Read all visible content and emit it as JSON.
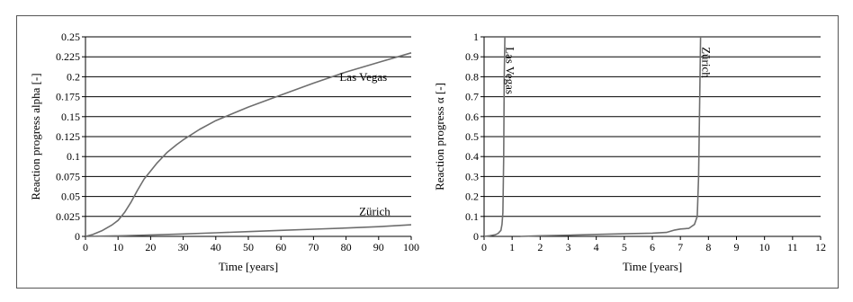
{
  "chart_data": [
    {
      "type": "line",
      "title": "",
      "xlabel": "Time [years]",
      "ylabel": "Reaction progress alpha [-]",
      "xlim": [
        0,
        100
      ],
      "ylim": [
        0,
        0.25
      ],
      "xticks": [
        "0",
        "10",
        "20",
        "30",
        "40",
        "50",
        "60",
        "70",
        "80",
        "90",
        "100"
      ],
      "yticks": [
        "0",
        "0.025",
        "0.05",
        "0.075",
        "0.1",
        "0.125",
        "0.15",
        "0.175",
        "0.2",
        "0.225",
        "0.25"
      ],
      "grid": "horizontal",
      "line_color": "#6e6e6e",
      "series": [
        {
          "name": "Las Vegas",
          "x": [
            0,
            2,
            5,
            8,
            10,
            12,
            14,
            16,
            18,
            20,
            22,
            25,
            28,
            30,
            35,
            40,
            50,
            60,
            70,
            80,
            90,
            100
          ],
          "y": [
            0,
            0.002,
            0.007,
            0.014,
            0.02,
            0.03,
            0.043,
            0.058,
            0.072,
            0.082,
            0.092,
            0.105,
            0.115,
            0.121,
            0.134,
            0.145,
            0.162,
            0.177,
            0.192,
            0.206,
            0.218,
            0.23
          ]
        },
        {
          "name": "Zürich",
          "x": [
            0,
            10,
            20,
            30,
            40,
            50,
            60,
            70,
            80,
            90,
            100
          ],
          "y": [
            0,
            0.0007,
            0.0018,
            0.003,
            0.0045,
            0.006,
            0.0075,
            0.009,
            0.0105,
            0.0122,
            0.0145
          ]
        }
      ],
      "annotations": [
        {
          "text": "Las Vegas",
          "at": [
            78,
            0.195
          ]
        },
        {
          "text": "Zürich",
          "at": [
            84,
            0.0265
          ]
        }
      ]
    },
    {
      "type": "line",
      "title": "",
      "xlabel": "Time [years]",
      "ylabel": "Reaction progress α [-]",
      "xlim": [
        0,
        12
      ],
      "ylim": [
        0,
        1
      ],
      "xticks": [
        "0",
        "1",
        "2",
        "3",
        "4",
        "5",
        "6",
        "7",
        "8",
        "9",
        "10",
        "11",
        "12"
      ],
      "yticks": [
        "0",
        "0.1",
        "0.2",
        "0.3",
        "0.4",
        "0.5",
        "0.6",
        "0.7",
        "0.8",
        "0.9",
        "1"
      ],
      "grid": "horizontal",
      "line_color": "#6e6e6e",
      "series": [
        {
          "name": "Las Vegas",
          "x": [
            0,
            0.2,
            0.4,
            0.5,
            0.6,
            0.64,
            0.67,
            0.7,
            0.72,
            0.74
          ],
          "y": [
            0,
            0.003,
            0.008,
            0.015,
            0.03,
            0.06,
            0.12,
            0.4,
            0.8,
            1.0
          ]
        },
        {
          "name": "Zürich",
          "x": [
            1.3,
            2,
            3,
            4,
            5,
            6,
            6.5,
            6.8,
            7,
            7.3,
            7.5,
            7.6,
            7.65,
            7.7,
            7.72
          ],
          "y": [
            0,
            0.003,
            0.006,
            0.01,
            0.013,
            0.016,
            0.02,
            0.032,
            0.037,
            0.04,
            0.06,
            0.1,
            0.3,
            0.8,
            1.0
          ]
        }
      ],
      "annotations": [
        {
          "text": "Las Vegas",
          "at": [
            0.78,
            0.95
          ],
          "rotated": true
        },
        {
          "text": "Zürich",
          "at": [
            7.78,
            0.95
          ],
          "rotated": true
        }
      ]
    }
  ]
}
